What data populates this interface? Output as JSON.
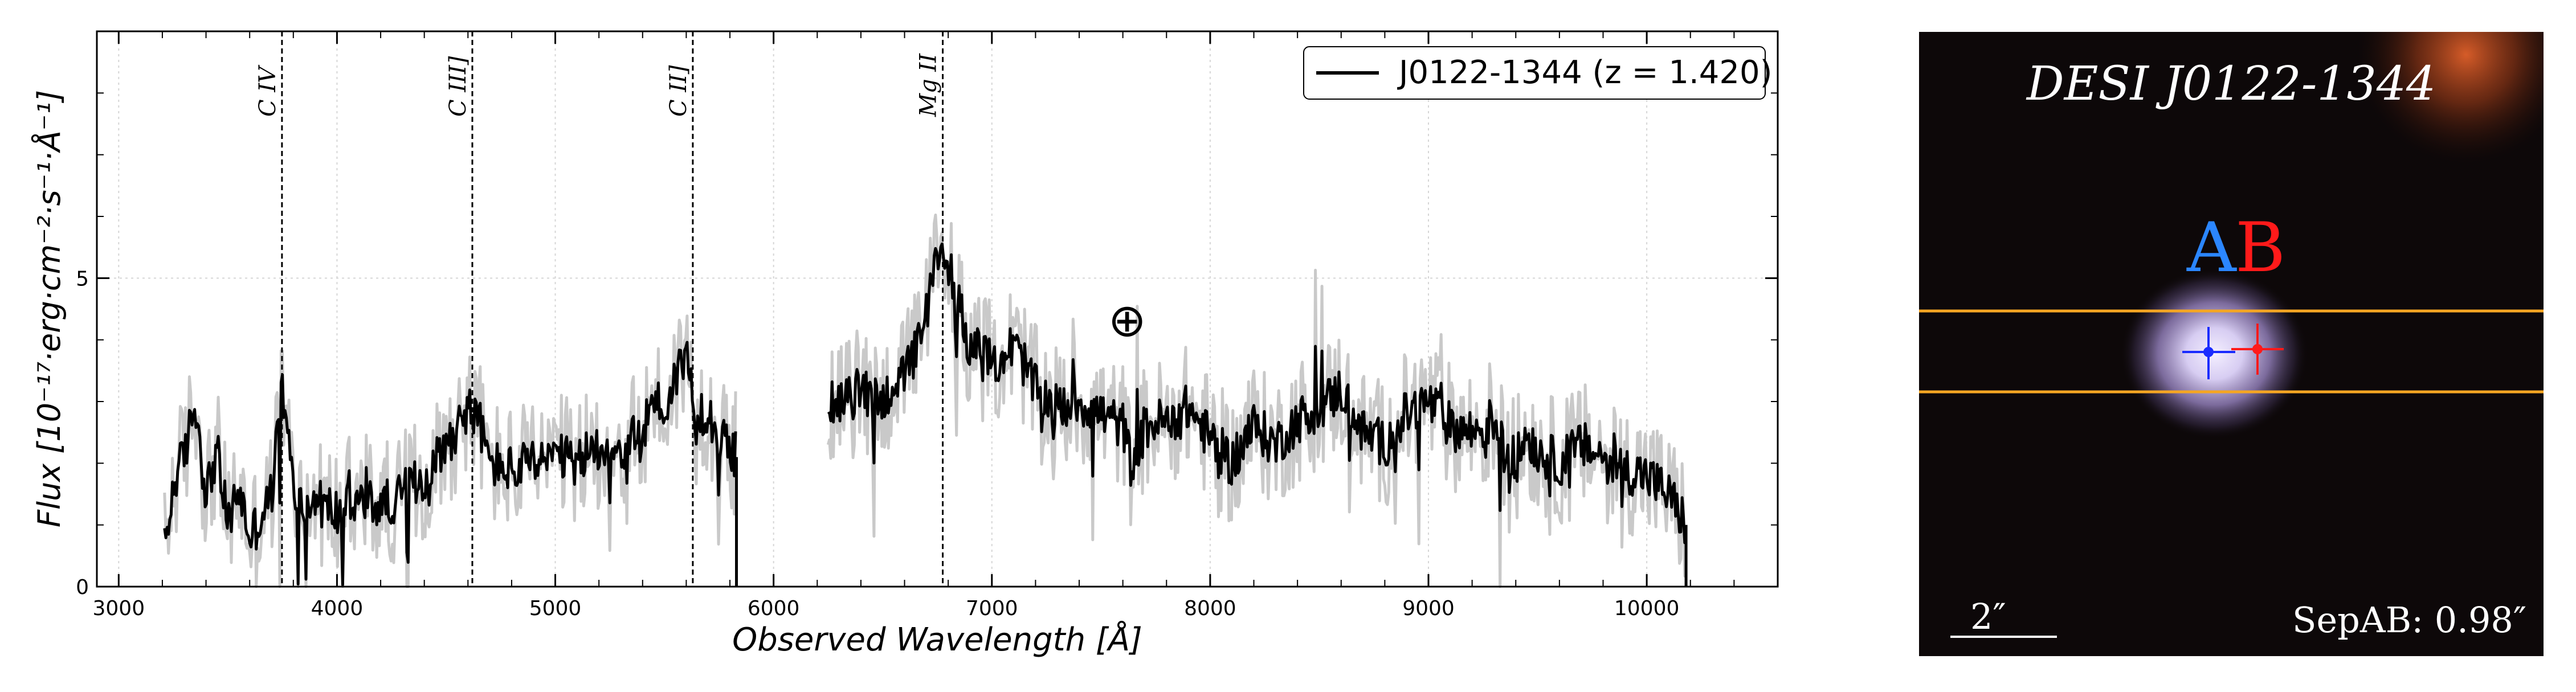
{
  "chart_data": [
    {
      "type": "line",
      "title": "",
      "xlabel": "Observed Wavelength [Å]",
      "ylabel": "Flux [10⁻¹⁷·erg·cm⁻²·s⁻¹·Å⁻¹]",
      "xlim": [
        2900,
        10600
      ],
      "ylim": [
        0,
        9
      ],
      "x_ticks": [
        "3000",
        "4000",
        "5000",
        "6000",
        "7000",
        "8000",
        "9000",
        "10000"
      ],
      "y_ticks": [
        "0",
        "5"
      ],
      "grid": true,
      "legend_position": "top-right",
      "series": [
        {
          "name": "J0122-1344 (z = 1.420)",
          "color": "#000000",
          "x": [
            3210,
            3260,
            3300,
            3350,
            3400,
            3450,
            3500,
            3550,
            3600,
            3650,
            3700,
            3750,
            3800,
            3850,
            3900,
            4000,
            4100,
            4200,
            4300,
            4400,
            4500,
            4550,
            4600,
            4650,
            4700,
            4800,
            4900,
            5000,
            5100,
            5200,
            5300,
            5400,
            5450,
            5500,
            5550,
            5600,
            5650,
            5700,
            5750,
            5800,
            5830
          ],
          "y": [
            0.6,
            1.8,
            2.1,
            3.0,
            1.5,
            2.2,
            1.0,
            1.6,
            0.8,
            1.1,
            1.5,
            3.2,
            1.6,
            1.2,
            1.4,
            1.2,
            1.4,
            1.3,
            1.5,
            1.8,
            2.3,
            2.6,
            2.9,
            2.7,
            2.0,
            1.9,
            2.0,
            2.1,
            2.0,
            2.3,
            2.2,
            2.5,
            3.1,
            2.8,
            3.4,
            3.8,
            2.6,
            2.9,
            2.4,
            2.3,
            2.1
          ]
        },
        {
          "name": "",
          "color": "#000000",
          "x": [
            6250,
            6300,
            6400,
            6500,
            6550,
            6600,
            6650,
            6700,
            6750,
            6780,
            6820,
            6870,
            6900,
            7000,
            7100,
            7150,
            7200,
            7300,
            7400,
            7500,
            7600,
            7650,
            7700,
            7800,
            7900,
            8000,
            8100,
            8200,
            8300,
            8400,
            8500,
            8600,
            8700,
            8800,
            8900,
            9000,
            9100,
            9200,
            9300,
            9380,
            9450,
            9500,
            9600,
            9700,
            9800,
            9900,
            10000,
            10100,
            10180
          ],
          "y": [
            3.1,
            2.9,
            3.2,
            3.0,
            3.3,
            3.4,
            3.8,
            4.4,
            5.3,
            5.5,
            5.0,
            4.3,
            3.9,
            3.6,
            3.9,
            3.6,
            3.2,
            2.9,
            3.0,
            2.8,
            2.6,
            1.8,
            2.6,
            2.7,
            2.9,
            2.4,
            2.0,
            2.6,
            2.3,
            2.7,
            2.9,
            3.2,
            2.5,
            2.3,
            2.8,
            3.0,
            2.6,
            2.5,
            2.7,
            1.8,
            2.5,
            2.2,
            2.0,
            2.3,
            2.1,
            1.9,
            1.8,
            1.5,
            1.0
          ]
        }
      ],
      "error_band_color": "#c9c9c9",
      "emission_lines": [
        {
          "label": "C IV",
          "x": 3748
        },
        {
          "label": "C III]",
          "x": 4620
        },
        {
          "label": "C II]",
          "x": 5630
        },
        {
          "label": "Mg II",
          "x": 6775
        }
      ],
      "telluric_symbol": "⊕",
      "telluric_position": {
        "x": 7620,
        "y": 4.3
      }
    },
    {
      "type": "image",
      "title": "DESI J0122-1344",
      "component_labels": [
        {
          "label": "A",
          "color": "#2b86ff"
        },
        {
          "label": "B",
          "color": "#ff1a1a"
        }
      ],
      "slit_color": "#f5a623",
      "scale_bar_label": "2″",
      "separation_label": "SepAB: 0.98″"
    }
  ]
}
